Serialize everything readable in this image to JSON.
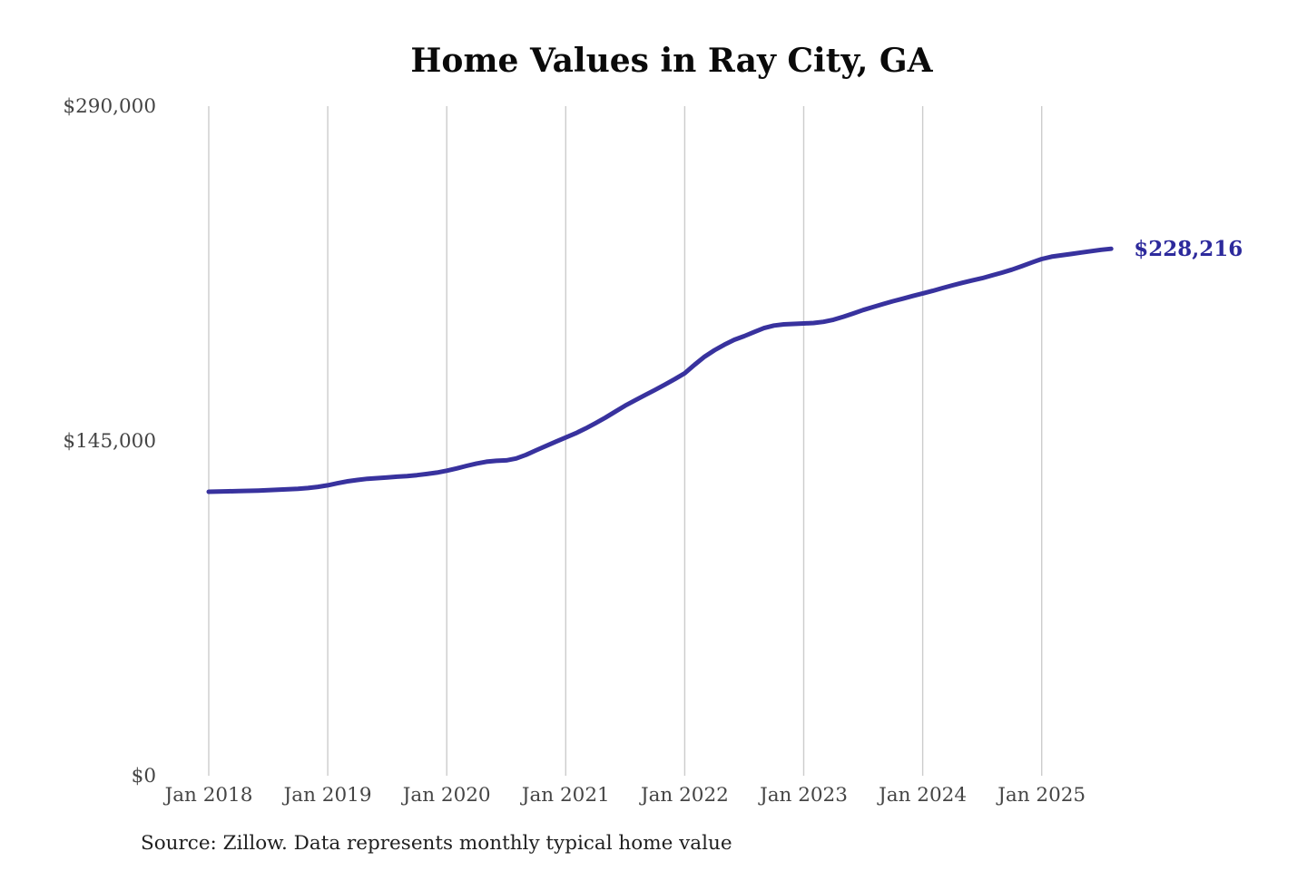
{
  "page": {
    "background_color": "#ffffff"
  },
  "chart_data": {
    "type": "line",
    "title": "Home Values in Ray City, GA",
    "source_note": "Source: Zillow. Data represents monthly typical home value",
    "end_label": "$228,216",
    "end_value": 228216,
    "ylim": [
      0,
      290000
    ],
    "grid": "vertical-only",
    "legend": "none",
    "colors": {
      "line": "#38329e",
      "end_label": "#2d2a9c",
      "gridline": "#cccccc",
      "axis_label": "#454545",
      "title": "#0a0a0a",
      "source": "#1f1f1f"
    },
    "y_ticks": [
      {
        "value": 0,
        "label": "$0"
      },
      {
        "value": 145000,
        "label": "$145,000"
      },
      {
        "value": 290000,
        "label": "$290,000"
      }
    ],
    "x_ticks": [
      {
        "month_index": 0,
        "label": "Jan 2018"
      },
      {
        "month_index": 12,
        "label": "Jan 2019"
      },
      {
        "month_index": 24,
        "label": "Jan 2020"
      },
      {
        "month_index": 36,
        "label": "Jan 2021"
      },
      {
        "month_index": 48,
        "label": "Jan 2022"
      },
      {
        "month_index": 60,
        "label": "Jan 2023"
      },
      {
        "month_index": 72,
        "label": "Jan 2024"
      },
      {
        "month_index": 84,
        "label": "Jan 2025"
      }
    ],
    "series": [
      {
        "name": "Monthly typical home value",
        "color": "#38329e",
        "x": [
          "2018-01",
          "2018-02",
          "2018-03",
          "2018-04",
          "2018-05",
          "2018-06",
          "2018-07",
          "2018-08",
          "2018-09",
          "2018-10",
          "2018-11",
          "2018-12",
          "2019-01",
          "2019-02",
          "2019-03",
          "2019-04",
          "2019-05",
          "2019-06",
          "2019-07",
          "2019-08",
          "2019-09",
          "2019-10",
          "2019-11",
          "2019-12",
          "2020-01",
          "2020-02",
          "2020-03",
          "2020-04",
          "2020-05",
          "2020-06",
          "2020-07",
          "2020-08",
          "2020-09",
          "2020-10",
          "2020-11",
          "2020-12",
          "2021-01",
          "2021-02",
          "2021-03",
          "2021-04",
          "2021-05",
          "2021-06",
          "2021-07",
          "2021-08",
          "2021-09",
          "2021-10",
          "2021-11",
          "2021-12",
          "2022-01",
          "2022-02",
          "2022-03",
          "2022-04",
          "2022-05",
          "2022-06",
          "2022-07",
          "2022-08",
          "2022-09",
          "2022-10",
          "2022-11",
          "2022-12",
          "2023-01",
          "2023-02",
          "2023-03",
          "2023-04",
          "2023-05",
          "2023-06",
          "2023-07",
          "2023-08",
          "2023-09",
          "2023-10",
          "2023-11",
          "2023-12",
          "2024-01",
          "2024-02",
          "2024-03",
          "2024-04",
          "2024-05",
          "2024-06",
          "2024-07",
          "2024-08",
          "2024-09",
          "2024-10",
          "2024-11",
          "2024-12",
          "2025-01",
          "2025-02",
          "2025-03",
          "2025-04",
          "2025-05",
          "2025-06",
          "2025-07",
          "2025-08"
        ],
        "values": [
          123000,
          123100,
          123200,
          123300,
          123400,
          123500,
          123700,
          123900,
          124100,
          124300,
          124600,
          125100,
          125800,
          126700,
          127500,
          128100,
          128600,
          128900,
          129200,
          129500,
          129800,
          130200,
          130700,
          131300,
          132100,
          133100,
          134200,
          135200,
          136000,
          136400,
          136600,
          137400,
          139000,
          140900,
          142800,
          144700,
          146500,
          148300,
          150400,
          152700,
          155100,
          157700,
          160300,
          162600,
          164900,
          167100,
          169400,
          171800,
          174300,
          178000,
          181500,
          184300,
          186700,
          188800,
          190400,
          192200,
          193900,
          195000,
          195500,
          195700,
          195900,
          196100,
          196600,
          197500,
          198800,
          200200,
          201700,
          203000,
          204300,
          205500,
          206600,
          207800,
          208900,
          210000,
          211200,
          212400,
          213500,
          214500,
          215500,
          216700,
          217900,
          219200,
          220700,
          222300,
          223800,
          224800,
          225400,
          226000,
          226600,
          227200,
          227800,
          228216
        ]
      }
    ]
  }
}
